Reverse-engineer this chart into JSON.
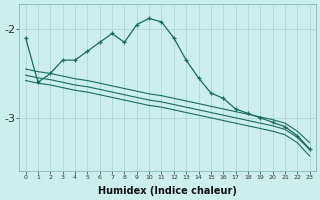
{
  "xlabel": "Humidex (Indice chaleur)",
  "bg_color": "#cceeed",
  "grid_color": "#b0d8d4",
  "line_color": "#1a6b60",
  "x_values": [
    0,
    1,
    2,
    3,
    4,
    5,
    6,
    7,
    8,
    9,
    10,
    11,
    12,
    13,
    14,
    15,
    16,
    17,
    18,
    19,
    20,
    21,
    22,
    23
  ],
  "line1": [
    -2.1,
    -2.6,
    -2.5,
    -2.35,
    -2.35,
    -2.25,
    -2.15,
    -2.05,
    -2.15,
    -1.95,
    -1.88,
    -1.92,
    -2.1,
    -2.35,
    -2.55,
    -2.72,
    -2.78,
    -2.9,
    -2.95,
    -3.0,
    -3.05,
    -3.1,
    -3.2,
    -3.35
  ],
  "line2": [
    -2.45,
    -2.48,
    -2.5,
    -2.53,
    -2.56,
    -2.58,
    -2.61,
    -2.64,
    -2.67,
    -2.7,
    -2.73,
    -2.75,
    -2.78,
    -2.81,
    -2.84,
    -2.87,
    -2.9,
    -2.93,
    -2.96,
    -2.99,
    -3.02,
    -3.06,
    -3.15,
    -3.28
  ],
  "line3": [
    -2.52,
    -2.55,
    -2.57,
    -2.6,
    -2.63,
    -2.65,
    -2.68,
    -2.71,
    -2.74,
    -2.77,
    -2.8,
    -2.82,
    -2.85,
    -2.88,
    -2.91,
    -2.94,
    -2.97,
    -3.0,
    -3.03,
    -3.06,
    -3.09,
    -3.13,
    -3.22,
    -3.36
  ],
  "line4": [
    -2.58,
    -2.61,
    -2.63,
    -2.66,
    -2.69,
    -2.71,
    -2.74,
    -2.77,
    -2.8,
    -2.83,
    -2.86,
    -2.88,
    -2.91,
    -2.94,
    -2.97,
    -3.0,
    -3.03,
    -3.06,
    -3.09,
    -3.12,
    -3.15,
    -3.19,
    -3.28,
    -3.43
  ],
  "ylim": [
    -3.6,
    -1.72
  ],
  "yticks": [
    -3.0,
    -2.0
  ],
  "xlim": [
    -0.5,
    23.5
  ]
}
